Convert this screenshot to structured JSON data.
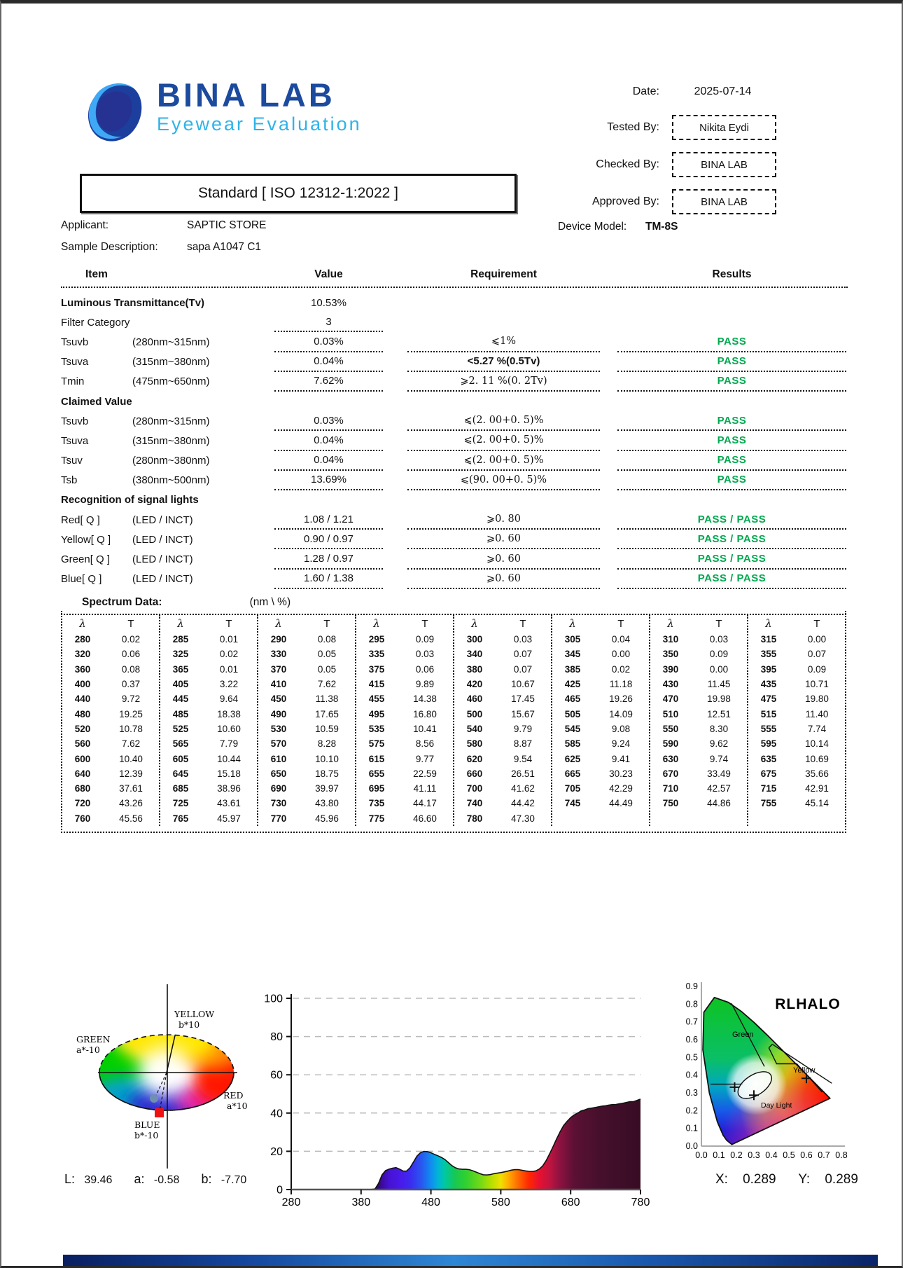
{
  "header": {
    "logo_title": "BINA LAB",
    "logo_subtitle": "Eyewear Evaluation",
    "date_label": "Date:",
    "date_value": "2025-07-14",
    "tested_by_label": "Tested By:",
    "tested_by_value": "Nikita Eydi",
    "checked_by_label": "Checked By:",
    "checked_by_value": "BINA LAB",
    "approved_by_label": "Approved By:",
    "approved_by_value": "BINA LAB",
    "standard_title": "Standard [ ISO 12312-1:2022 ]",
    "applicant_label": "Applicant:",
    "applicant_value": "SAPTIC STORE",
    "sample_label": "Sample Description:",
    "sample_value": "sapa A1047 C1",
    "device_label": "Device Model:",
    "device_value": "TM-8S"
  },
  "results_table": {
    "headers": [
      "Item",
      "Value",
      "Requirement",
      "Results"
    ],
    "pass_color": "#00a94f",
    "rows": [
      {
        "item": "Luminous Transmittance(Tv)",
        "bold": true,
        "range": "",
        "value": "10.53%",
        "req": "",
        "result": "",
        "u": {
          "v": 0,
          "r": 0,
          "s": 0
        }
      },
      {
        "item": "Filter Category",
        "range": "",
        "value": "3",
        "req": "",
        "result": "",
        "u": {
          "v": 1,
          "r": 0,
          "s": 0
        }
      },
      {
        "item": "Tsuvb",
        "range": "(280nm~315nm)",
        "value": "0.03%",
        "req": "⩽1%",
        "result": "PASS",
        "u": {
          "v": 1,
          "r": 1,
          "s": 1
        }
      },
      {
        "item": "Tsuva",
        "range": "(315nm~380nm)",
        "value": "0.04%",
        "req": "<5.27 %(0.5Tv)",
        "result": "PASS",
        "u": {
          "v": 1,
          "r": 1,
          "s": 1
        }
      },
      {
        "item": "Tmin",
        "range": "(475nm~650nm)",
        "value": "7.62%",
        "req": "⩾2. 11  %(0. 2Tv)",
        "result": "PASS",
        "u": {
          "v": 1,
          "r": 1,
          "s": 1
        }
      },
      {
        "item": "Claimed Value",
        "section": true
      },
      {
        "item": "Tsuvb",
        "range": "(280nm~315nm)",
        "value": "0.03%",
        "req": "⩽(2. 00+0. 5)%",
        "result": "PASS",
        "u": {
          "v": 1,
          "r": 1,
          "s": 1
        }
      },
      {
        "item": "Tsuva",
        "range": "(315nm~380nm)",
        "value": "0.04%",
        "req": "⩽(2. 00+0. 5)%",
        "result": "PASS",
        "u": {
          "v": 1,
          "r": 1,
          "s": 1
        }
      },
      {
        "item": "Tsuv",
        "range": "(280nm~380nm)",
        "value": "0.04%",
        "req": "⩽(2. 00+0. 5)%",
        "result": "PASS",
        "u": {
          "v": 1,
          "r": 1,
          "s": 1
        }
      },
      {
        "item": "Tsb",
        "range": "(380nm~500nm)",
        "value": "13.69%",
        "req": "⩽(90. 00+0. 5)%",
        "result": "PASS",
        "u": {
          "v": 1,
          "r": 1,
          "s": 1
        }
      },
      {
        "item": "Recognition of signal lights",
        "section": true
      },
      {
        "item": "Red[ Q ]",
        "range": "(LED / INCT)",
        "value": "1.08 / 1.21",
        "req": "⩾0. 80",
        "result": "PASS / PASS",
        "u": {
          "v": 1,
          "r": 1,
          "s": 1
        }
      },
      {
        "item": "Yellow[ Q ]",
        "range": "(LED / INCT)",
        "value": "0.90 / 0.97",
        "req": "⩾0. 60",
        "result": "PASS / PASS",
        "u": {
          "v": 1,
          "r": 1,
          "s": 1
        }
      },
      {
        "item": "Green[ Q ]",
        "range": "(LED / INCT)",
        "value": "1.28 / 0.97",
        "req": "⩾0. 60",
        "result": "PASS / PASS",
        "u": {
          "v": 1,
          "r": 1,
          "s": 1
        }
      },
      {
        "item": "Blue[ Q ]",
        "range": "(LED / INCT)",
        "value": "1.60 / 1.38",
        "req": "⩾0. 60",
        "result": "PASS / PASS",
        "u": {
          "v": 1,
          "r": 1,
          "s": 1
        }
      }
    ]
  },
  "spectrum_section": {
    "title": "Spectrum Data:",
    "units": "(nm \\  %)",
    "col_headers": [
      "λ",
      "T"
    ]
  },
  "chart_data": [
    {
      "id": "lab-hue-ellipse",
      "type": "scatter",
      "title": "CIELab hue plane",
      "axis_labels": {
        "top1": "YELLOW",
        "top2": "b*10",
        "left1": "GREEN",
        "left2": "a*-10",
        "right1": "RED",
        "right2": "a*10",
        "bottom1": "BLUE",
        "bottom2": "b*-10"
      },
      "sample": {
        "L": 39.46,
        "a": -0.58,
        "b": -7.7
      }
    },
    {
      "id": "transmittance-spectrum",
      "type": "area",
      "title": "",
      "xlabel": "nm",
      "ylabel": "%",
      "xlim": [
        280,
        780
      ],
      "ylim": [
        0,
        100
      ],
      "x_ticks": [
        280,
        380,
        480,
        580,
        680,
        780
      ],
      "y_ticks": [
        0,
        20,
        40,
        60,
        80,
        100
      ],
      "grid": "dashed-horizontal",
      "pairs": [
        [
          280,
          0.02
        ],
        [
          285,
          0.01
        ],
        [
          290,
          0.08
        ],
        [
          295,
          0.09
        ],
        [
          300,
          0.03
        ],
        [
          305,
          0.04
        ],
        [
          310,
          0.03
        ],
        [
          315,
          0.0
        ],
        [
          320,
          0.06
        ],
        [
          325,
          0.02
        ],
        [
          330,
          0.05
        ],
        [
          335,
          0.03
        ],
        [
          340,
          0.07
        ],
        [
          345,
          0.0
        ],
        [
          350,
          0.09
        ],
        [
          355,
          0.07
        ],
        [
          360,
          0.08
        ],
        [
          365,
          0.01
        ],
        [
          370,
          0.05
        ],
        [
          375,
          0.06
        ],
        [
          380,
          0.07
        ],
        [
          385,
          0.02
        ],
        [
          390,
          0.0
        ],
        [
          395,
          0.09
        ],
        [
          400,
          0.37
        ],
        [
          405,
          3.22
        ],
        [
          410,
          7.62
        ],
        [
          415,
          9.89
        ],
        [
          420,
          10.67
        ],
        [
          425,
          11.18
        ],
        [
          430,
          11.45
        ],
        [
          435,
          10.71
        ],
        [
          440,
          9.72
        ],
        [
          445,
          9.64
        ],
        [
          450,
          11.38
        ],
        [
          455,
          14.38
        ],
        [
          460,
          17.45
        ],
        [
          465,
          19.26
        ],
        [
          470,
          19.98
        ],
        [
          475,
          19.8
        ],
        [
          480,
          19.25
        ],
        [
          485,
          18.38
        ],
        [
          490,
          17.65
        ],
        [
          495,
          16.8
        ],
        [
          500,
          15.67
        ],
        [
          505,
          14.09
        ],
        [
          510,
          12.51
        ],
        [
          515,
          11.4
        ],
        [
          520,
          10.78
        ],
        [
          525,
          10.6
        ],
        [
          530,
          10.59
        ],
        [
          535,
          10.41
        ],
        [
          540,
          9.79
        ],
        [
          545,
          9.08
        ],
        [
          550,
          8.3
        ],
        [
          555,
          7.74
        ],
        [
          560,
          7.62
        ],
        [
          565,
          7.79
        ],
        [
          570,
          8.28
        ],
        [
          575,
          8.56
        ],
        [
          580,
          8.87
        ],
        [
          585,
          9.24
        ],
        [
          590,
          9.62
        ],
        [
          595,
          10.14
        ],
        [
          600,
          10.4
        ],
        [
          605,
          10.44
        ],
        [
          610,
          10.1
        ],
        [
          615,
          9.77
        ],
        [
          620,
          9.54
        ],
        [
          625,
          9.41
        ],
        [
          630,
          9.74
        ],
        [
          635,
          10.69
        ],
        [
          640,
          12.39
        ],
        [
          645,
          15.18
        ],
        [
          650,
          18.75
        ],
        [
          655,
          22.59
        ],
        [
          660,
          26.51
        ],
        [
          665,
          30.23
        ],
        [
          670,
          33.49
        ],
        [
          675,
          35.66
        ],
        [
          680,
          37.61
        ],
        [
          685,
          38.96
        ],
        [
          690,
          39.97
        ],
        [
          695,
          41.11
        ],
        [
          700,
          41.62
        ],
        [
          705,
          42.29
        ],
        [
          710,
          42.57
        ],
        [
          715,
          42.91
        ],
        [
          720,
          43.26
        ],
        [
          725,
          43.61
        ],
        [
          730,
          43.8
        ],
        [
          735,
          44.17
        ],
        [
          740,
          44.42
        ],
        [
          745,
          44.49
        ],
        [
          750,
          44.86
        ],
        [
          755,
          45.14
        ],
        [
          760,
          45.56
        ],
        [
          765,
          45.97
        ],
        [
          770,
          45.96
        ],
        [
          775,
          46.6
        ],
        [
          780,
          47.3
        ]
      ]
    },
    {
      "id": "cie-chromaticity",
      "type": "scatter",
      "title": "RLHALO",
      "x_ticks": [
        "0.0",
        "0.1",
        "0.2",
        "0.3",
        "0.4",
        "0.5",
        "0.6",
        "0.7",
        "0.8"
      ],
      "y_ticks": [
        "0.0",
        "0.1",
        "0.2",
        "0.3",
        "0.4",
        "0.5",
        "0.6",
        "0.7",
        "0.8",
        "0.9"
      ],
      "region_labels": {
        "green": "Green",
        "yellow": "Yellow",
        "daylight": "Day Light"
      },
      "points": [
        {
          "x": 0.19,
          "y": 0.33
        },
        {
          "x": 0.3,
          "y": 0.285
        },
        {
          "x": 0.6,
          "y": 0.38
        }
      ],
      "result": {
        "X": 0.289,
        "Y": 0.289
      }
    }
  ],
  "footer": {
    "L_label": "L:",
    "L_value": "39.46",
    "a_label": "a:",
    "a_value": "-0.58",
    "b_label": "b:",
    "b_value": "-7.70",
    "X_label": "X:",
    "X_value": "0.289",
    "Y_label": "Y:",
    "Y_value": "0.289"
  }
}
